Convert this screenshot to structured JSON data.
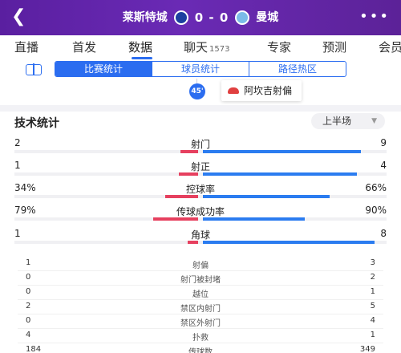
{
  "header": {
    "back_icon": "back-arrow-icon",
    "home_team": "莱斯特城",
    "score": "0 - 0",
    "away_team": "曼城",
    "more_icon": "more-dots-icon",
    "gradient": [
      "#5a1fa0",
      "#6a2ab5"
    ]
  },
  "tabs": [
    {
      "label": "直播"
    },
    {
      "label": "首发"
    },
    {
      "label": "数据",
      "active": true
    },
    {
      "label": "聊天",
      "count": "1573"
    },
    {
      "label": "专家"
    },
    {
      "label": "预测"
    },
    {
      "label": "会员"
    }
  ],
  "sub_tabs": [
    "比赛统计",
    "球员统计",
    "路径热区"
  ],
  "timeline": {
    "minute": "45'",
    "event": "阿坎吉射偏"
  },
  "stats": {
    "title": "技术统计",
    "period": "上半场",
    "bar_rows": [
      {
        "label": "射门",
        "home": "2",
        "away": "9",
        "home_frac": 0.18,
        "away_frac": 0.82
      },
      {
        "label": "射正",
        "home": "1",
        "away": "4",
        "home_frac": 0.2,
        "away_frac": 0.8
      },
      {
        "label": "控球率",
        "home": "34%",
        "away": "66%",
        "home_frac": 0.34,
        "away_frac": 0.66
      },
      {
        "label": "传球成功率",
        "home": "79%",
        "away": "90%",
        "home_frac": 0.47,
        "away_frac": 0.53
      },
      {
        "label": "角球",
        "home": "1",
        "away": "8",
        "home_frac": 0.11,
        "away_frac": 0.89
      }
    ],
    "simple_rows": [
      {
        "label": "射偏",
        "home": "1",
        "away": "3"
      },
      {
        "label": "射门被封堵",
        "home": "0",
        "away": "2"
      },
      {
        "label": "越位",
        "home": "0",
        "away": "1"
      },
      {
        "label": "禁区内射门",
        "home": "2",
        "away": "5"
      },
      {
        "label": "禁区外射门",
        "home": "0",
        "away": "4"
      },
      {
        "label": "扑救",
        "home": "4",
        "away": "1"
      },
      {
        "label": "传球数",
        "home": "184",
        "away": "349"
      }
    ]
  },
  "colors": {
    "accent": "#2b6df0",
    "home": "#e6405f",
    "away": "#2b7cf0"
  }
}
